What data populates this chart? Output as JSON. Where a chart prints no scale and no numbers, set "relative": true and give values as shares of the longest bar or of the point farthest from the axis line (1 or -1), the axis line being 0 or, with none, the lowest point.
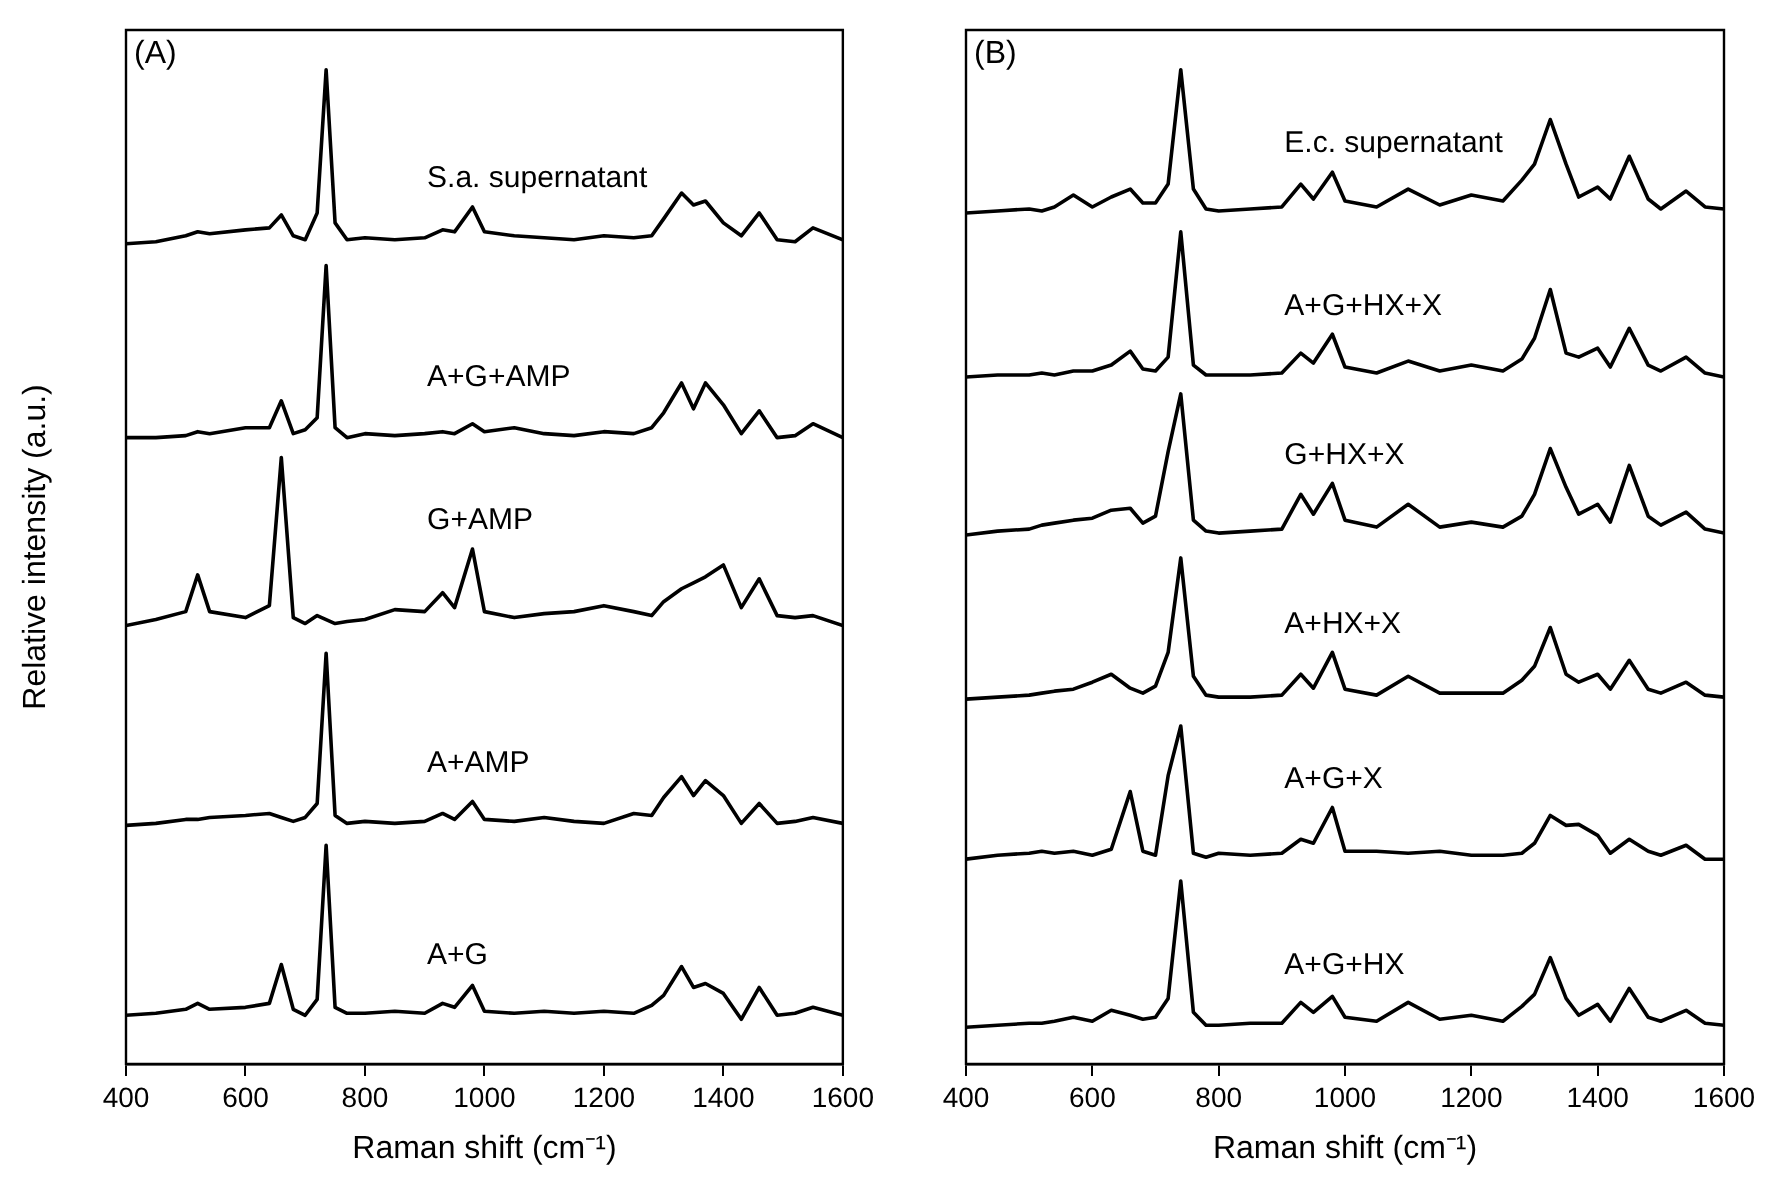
{
  "chart_data": [
    {
      "type": "line",
      "relative": true,
      "xlabel": "Raman shift (cm⁻¹)",
      "ylabel": "Relative intensity (a.u.)",
      "annotations": [
        "(A)"
      ],
      "xlim": [
        400,
        1600
      ],
      "xticks": [
        400,
        600,
        800,
        1000,
        1200,
        1400,
        1600
      ],
      "x": [
        400,
        450,
        500,
        520,
        540,
        600,
        640,
        660,
        680,
        700,
        720,
        735,
        750,
        770,
        800,
        850,
        900,
        930,
        950,
        980,
        1000,
        1050,
        1100,
        1150,
        1200,
        1250,
        1280,
        1300,
        1330,
        1350,
        1370,
        1400,
        1430,
        1460,
        1490,
        1520,
        1550,
        1600
      ],
      "series": [
        {
          "name": "S.a. supernatant",
          "color": "#000000",
          "values": [
            0.825,
            0.827,
            0.833,
            0.837,
            0.835,
            0.839,
            0.841,
            0.854,
            0.833,
            0.829,
            0.856,
            1.0,
            0.846,
            0.829,
            0.831,
            0.829,
            0.831,
            0.839,
            0.837,
            0.862,
            0.837,
            0.833,
            0.831,
            0.829,
            0.833,
            0.831,
            0.833,
            0.85,
            0.876,
            0.864,
            0.868,
            0.846,
            0.833,
            0.856,
            0.829,
            0.827,
            0.841,
            0.829
          ]
        },
        {
          "name": "A+G+AMP",
          "color": "#000000",
          "values": [
            0.63,
            0.63,
            0.632,
            0.636,
            0.634,
            0.64,
            0.64,
            0.667,
            0.634,
            0.638,
            0.65,
            0.803,
            0.64,
            0.63,
            0.634,
            0.632,
            0.634,
            0.636,
            0.634,
            0.644,
            0.636,
            0.64,
            0.634,
            0.632,
            0.636,
            0.634,
            0.64,
            0.655,
            0.685,
            0.659,
            0.685,
            0.663,
            0.634,
            0.657,
            0.63,
            0.632,
            0.644,
            0.63
          ]
        },
        {
          "name": "G+AMP",
          "color": "#000000",
          "values": [
            0.441,
            0.447,
            0.455,
            0.492,
            0.455,
            0.449,
            0.461,
            0.61,
            0.449,
            0.443,
            0.451,
            0.447,
            0.443,
            0.445,
            0.447,
            0.457,
            0.455,
            0.474,
            0.459,
            0.518,
            0.455,
            0.449,
            0.453,
            0.455,
            0.461,
            0.455,
            0.451,
            0.465,
            0.478,
            0.484,
            0.49,
            0.502,
            0.459,
            0.488,
            0.451,
            0.449,
            0.451,
            0.441
          ]
        },
        {
          "name": "A+AMP",
          "color": "#000000",
          "values": [
            0.24,
            0.242,
            0.246,
            0.246,
            0.248,
            0.25,
            0.252,
            0.248,
            0.244,
            0.248,
            0.262,
            0.413,
            0.25,
            0.242,
            0.244,
            0.242,
            0.244,
            0.252,
            0.246,
            0.264,
            0.246,
            0.244,
            0.248,
            0.244,
            0.242,
            0.252,
            0.25,
            0.268,
            0.289,
            0.27,
            0.285,
            0.27,
            0.242,
            0.262,
            0.242,
            0.244,
            0.248,
            0.242
          ]
        },
        {
          "name": "A+G",
          "color": "#000000",
          "values": [
            0.049,
            0.051,
            0.055,
            0.061,
            0.055,
            0.057,
            0.061,
            0.1,
            0.055,
            0.049,
            0.065,
            0.22,
            0.057,
            0.051,
            0.051,
            0.053,
            0.051,
            0.061,
            0.057,
            0.079,
            0.053,
            0.051,
            0.053,
            0.051,
            0.053,
            0.051,
            0.059,
            0.069,
            0.098,
            0.077,
            0.081,
            0.071,
            0.045,
            0.077,
            0.049,
            0.051,
            0.057,
            0.049
          ]
        }
      ]
    },
    {
      "type": "line",
      "relative": true,
      "xlabel": "Raman shift (cm⁻¹)",
      "annotations": [
        "(B)"
      ],
      "xlim": [
        400,
        1600
      ],
      "xticks": [
        400,
        600,
        800,
        1000,
        1200,
        1400,
        1600
      ],
      "x": [
        400,
        450,
        500,
        520,
        540,
        570,
        600,
        630,
        660,
        680,
        700,
        720,
        740,
        760,
        780,
        800,
        850,
        900,
        930,
        950,
        980,
        1000,
        1050,
        1100,
        1150,
        1200,
        1250,
        1280,
        1300,
        1325,
        1350,
        1370,
        1400,
        1420,
        1450,
        1480,
        1500,
        1540,
        1570,
        1600
      ],
      "series": [
        {
          "name": "E.c. supernatant",
          "color": "#000000",
          "values": [
            0.856,
            0.858,
            0.86,
            0.858,
            0.862,
            0.874,
            0.862,
            0.872,
            0.88,
            0.866,
            0.866,
            0.885,
            1.0,
            0.88,
            0.86,
            0.858,
            0.86,
            0.862,
            0.885,
            0.87,
            0.897,
            0.868,
            0.862,
            0.88,
            0.864,
            0.874,
            0.868,
            0.889,
            0.905,
            0.95,
            0.905,
            0.872,
            0.882,
            0.87,
            0.913,
            0.87,
            0.86,
            0.878,
            0.862,
            0.86
          ]
        },
        {
          "name": "A+G+HX+X",
          "color": "#000000",
          "values": [
            0.691,
            0.693,
            0.693,
            0.695,
            0.693,
            0.697,
            0.697,
            0.703,
            0.717,
            0.699,
            0.697,
            0.711,
            0.837,
            0.703,
            0.693,
            0.693,
            0.693,
            0.695,
            0.715,
            0.705,
            0.734,
            0.701,
            0.695,
            0.707,
            0.697,
            0.703,
            0.697,
            0.709,
            0.73,
            0.779,
            0.715,
            0.711,
            0.72,
            0.701,
            0.74,
            0.703,
            0.697,
            0.711,
            0.695,
            0.691
          ]
        },
        {
          "name": "G+HX+X",
          "color": "#000000",
          "values": [
            0.532,
            0.536,
            0.538,
            0.542,
            0.544,
            0.547,
            0.549,
            0.557,
            0.559,
            0.544,
            0.551,
            0.616,
            0.674,
            0.547,
            0.536,
            0.534,
            0.536,
            0.538,
            0.573,
            0.553,
            0.584,
            0.547,
            0.54,
            0.563,
            0.54,
            0.545,
            0.54,
            0.551,
            0.573,
            0.619,
            0.58,
            0.553,
            0.563,
            0.545,
            0.602,
            0.551,
            0.542,
            0.555,
            0.538,
            0.534
          ]
        },
        {
          "name": "A+HX+X",
          "color": "#000000",
          "values": [
            0.367,
            0.369,
            0.371,
            0.373,
            0.375,
            0.377,
            0.384,
            0.392,
            0.378,
            0.373,
            0.38,
            0.414,
            0.509,
            0.39,
            0.371,
            0.369,
            0.369,
            0.371,
            0.392,
            0.378,
            0.414,
            0.377,
            0.371,
            0.39,
            0.373,
            0.373,
            0.373,
            0.386,
            0.4,
            0.439,
            0.392,
            0.384,
            0.392,
            0.377,
            0.406,
            0.377,
            0.373,
            0.384,
            0.371,
            0.369
          ]
        },
        {
          "name": "A+G+X",
          "color": "#000000",
          "values": [
            0.206,
            0.21,
            0.212,
            0.214,
            0.212,
            0.214,
            0.21,
            0.216,
            0.274,
            0.214,
            0.21,
            0.29,
            0.34,
            0.212,
            0.208,
            0.212,
            0.21,
            0.212,
            0.226,
            0.222,
            0.258,
            0.214,
            0.214,
            0.212,
            0.214,
            0.21,
            0.21,
            0.212,
            0.222,
            0.25,
            0.24,
            0.241,
            0.23,
            0.212,
            0.226,
            0.214,
            0.21,
            0.22,
            0.206,
            0.206
          ]
        },
        {
          "name": "A+G+HX",
          "color": "#000000",
          "values": [
            0.037,
            0.039,
            0.041,
            0.041,
            0.043,
            0.047,
            0.043,
            0.054,
            0.049,
            0.045,
            0.047,
            0.066,
            0.184,
            0.052,
            0.039,
            0.039,
            0.041,
            0.041,
            0.062,
            0.052,
            0.068,
            0.047,
            0.043,
            0.062,
            0.045,
            0.049,
            0.043,
            0.058,
            0.07,
            0.107,
            0.066,
            0.049,
            0.06,
            0.043,
            0.076,
            0.047,
            0.043,
            0.054,
            0.041,
            0.039
          ]
        }
      ]
    }
  ]
}
